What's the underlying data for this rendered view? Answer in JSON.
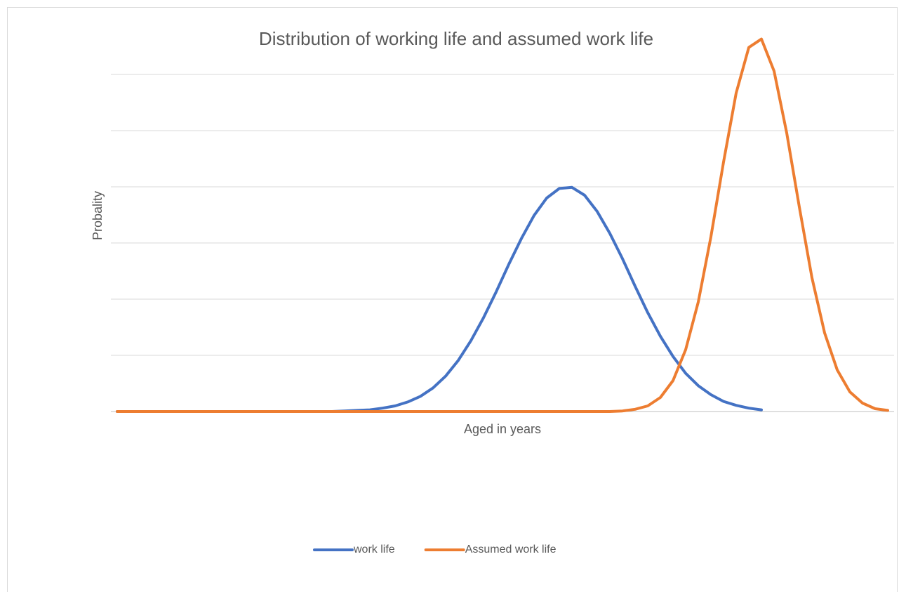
{
  "chart_data": {
    "type": "line",
    "title": "Distribution of working life and assumed work life",
    "x_label": "Aged in years",
    "y_label": "Probality",
    "categories": [
      null,
      null,
      null,
      null,
      null,
      null,
      null,
      null,
      null,
      null,
      null,
      null,
      null,
      null,
      null,
      null,
      null,
      null,
      null,
      null,
      null,
      null,
      null,
      null,
      null,
      null,
      null,
      null,
      null,
      null,
      null,
      null,
      null,
      null,
      null,
      null,
      null,
      null,
      null,
      null,
      null,
      null,
      null,
      null,
      null,
      null,
      null,
      null,
      null,
      null,
      null,
      null,
      null,
      null,
      null,
      null,
      null,
      null,
      null,
      null,
      null,
      null
    ],
    "series": [
      {
        "name": "work life",
        "color": "#4472c4",
        "values": [
          0,
          0,
          0,
          0,
          0,
          0,
          0,
          0,
          0,
          0,
          0,
          0,
          0,
          0,
          0,
          0,
          0,
          0,
          0.01,
          0.02,
          0.03,
          0.06,
          0.1,
          0.17,
          0.27,
          0.42,
          0.63,
          0.91,
          1.26,
          1.67,
          2.13,
          2.62,
          3.08,
          3.49,
          3.8,
          3.97,
          3.99,
          3.85,
          3.56,
          3.17,
          2.72,
          2.23,
          1.76,
          1.34,
          0.98,
          0.68,
          0.46,
          0.3,
          0.18,
          0.11,
          0.06,
          0.03,
          null,
          null,
          null,
          null,
          null,
          null,
          null,
          null,
          null,
          null
        ]
      },
      {
        "name": "Assumed work life",
        "color": "#ed7d31",
        "values": [
          0,
          0,
          0,
          0,
          0,
          0,
          0,
          0,
          0,
          0,
          0,
          0,
          0,
          0,
          0,
          0,
          0,
          0,
          0,
          0,
          0,
          0,
          0,
          0,
          0,
          0,
          0,
          0,
          0,
          0,
          0,
          0,
          0,
          0,
          0,
          0,
          0,
          0,
          0,
          0,
          0.01,
          0.04,
          0.1,
          0.25,
          0.55,
          1.1,
          1.95,
          3.11,
          4.44,
          5.67,
          6.48,
          6.63,
          6.06,
          4.96,
          3.64,
          2.38,
          1.4,
          0.74,
          0.35,
          0.15,
          0.05,
          0.02
        ]
      }
    ],
    "ylim": [
      0,
      7
    ],
    "yticks": [
      0,
      1,
      2,
      3,
      4,
      5,
      6
    ],
    "grid": true,
    "legend": "bottom"
  }
}
